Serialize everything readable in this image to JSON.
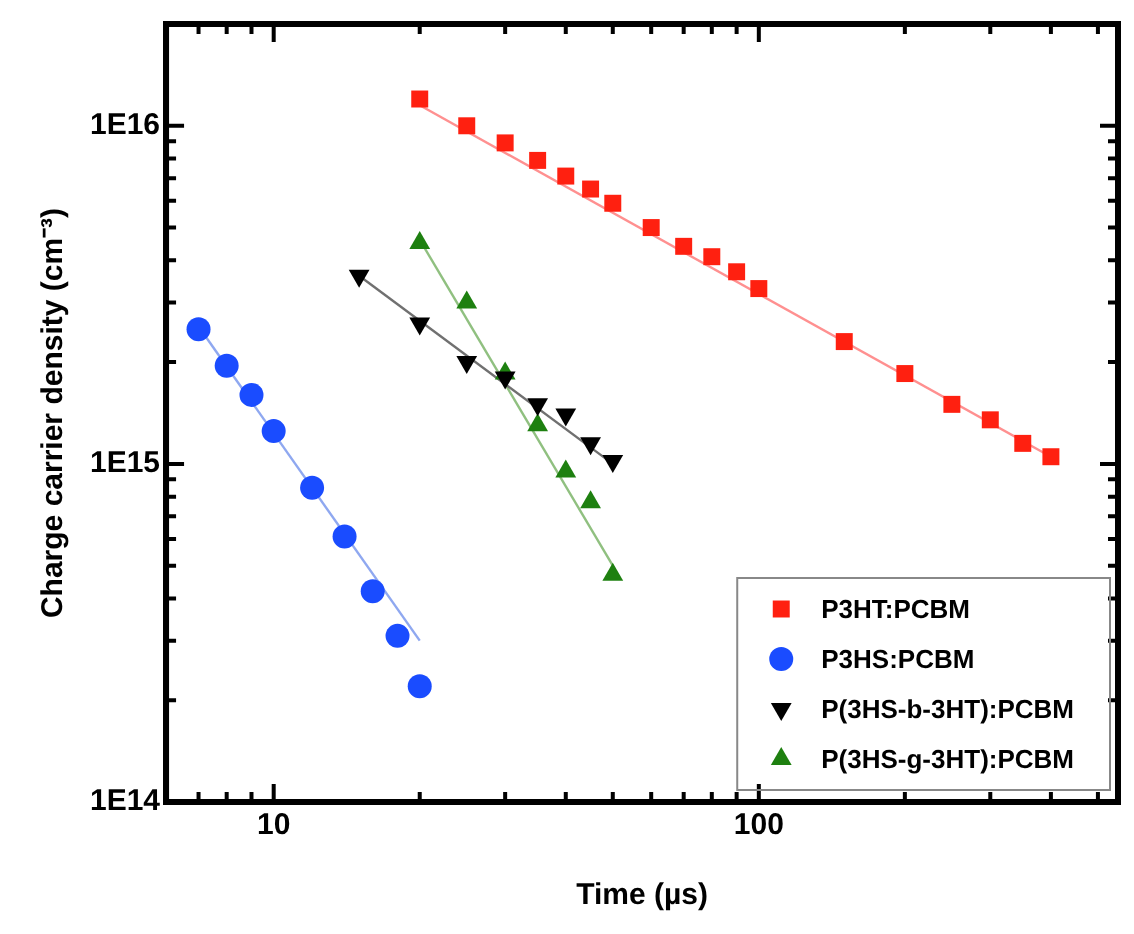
{
  "chart_data": {
    "type": "scatter",
    "xlabel": "Time (µs)",
    "ylabel": "Charge carrier density (cm⁻³)",
    "log": "xy",
    "grid": false,
    "legend": "bottom right",
    "xlim": [
      6,
      550
    ],
    "ylim": [
      100000000000000.0,
      2e+16
    ],
    "xticks": [
      {
        "value": 7,
        "label": null
      },
      {
        "value": 8,
        "label": null
      },
      {
        "value": 9,
        "label": null
      },
      {
        "value": 10,
        "label": "10"
      },
      {
        "value": 20,
        "label": null
      },
      {
        "value": 30,
        "label": null
      },
      {
        "value": 40,
        "label": null
      },
      {
        "value": 50,
        "label": null
      },
      {
        "value": 60,
        "label": null
      },
      {
        "value": 70,
        "label": null
      },
      {
        "value": 80,
        "label": null
      },
      {
        "value": 90,
        "label": null
      },
      {
        "value": 100,
        "label": "100"
      },
      {
        "value": 200,
        "label": null
      },
      {
        "value": 300,
        "label": null
      },
      {
        "value": 400,
        "label": null
      },
      {
        "value": 500,
        "label": null
      }
    ],
    "yticks": [
      {
        "value": 100000000000000.0,
        "label": "1E14"
      },
      {
        "value": 200000000000000.0,
        "label": null
      },
      {
        "value": 300000000000000.0,
        "label": null
      },
      {
        "value": 400000000000000.0,
        "label": null
      },
      {
        "value": 500000000000000.0,
        "label": null
      },
      {
        "value": 600000000000000.0,
        "label": null
      },
      {
        "value": 700000000000000.0,
        "label": null
      },
      {
        "value": 800000000000000.0,
        "label": null
      },
      {
        "value": 900000000000000.0,
        "label": null
      },
      {
        "value": 1000000000000000.0,
        "label": "1E15"
      },
      {
        "value": 2000000000000000.0,
        "label": null
      },
      {
        "value": 3000000000000000.0,
        "label": null
      },
      {
        "value": 4000000000000000.0,
        "label": null
      },
      {
        "value": 5000000000000000.0,
        "label": null
      },
      {
        "value": 6000000000000000.0,
        "label": null
      },
      {
        "value": 7000000000000000.0,
        "label": null
      },
      {
        "value": 8000000000000000.0,
        "label": null
      },
      {
        "value": 9000000000000000.0,
        "label": null
      },
      {
        "value": 1e+16,
        "label": "1E16"
      },
      {
        "value": 2e+16,
        "label": null
      }
    ],
    "series": [
      {
        "name": "P3HT:PCBM",
        "color": "#ff2010",
        "marker": "square",
        "x": [
          20,
          25,
          30,
          35,
          40,
          45,
          50,
          60,
          70,
          80,
          90,
          100,
          150,
          200,
          250,
          300,
          350,
          400
        ],
        "values": [
          1.2e+16,
          1e+16,
          8900000000000000.0,
          7900000000000000.0,
          7100000000000000.0,
          6500000000000000.0,
          5900000000000000.0,
          5000000000000000.0,
          4400000000000000.0,
          4100000000000000.0,
          3700000000000000.0,
          3300000000000000.0,
          2300000000000000.0,
          1850000000000000.0,
          1500000000000000.0,
          1350000000000000.0,
          1150000000000000.0,
          1050000000000000.0
        ]
      },
      {
        "name": "P3HS:PCBM",
        "color": "#1a4cff",
        "marker": "circle",
        "x": [
          7,
          8,
          9,
          10,
          12,
          14,
          16,
          18,
          20
        ],
        "values": [
          2500000000000000.0,
          1950000000000000.0,
          1600000000000000.0,
          1250000000000000.0,
          850000000000000.0,
          610000000000000.0,
          420000000000000.0,
          310000000000000.0,
          220000000000000.0
        ]
      },
      {
        "name": "P(3HS-b-3HT):PCBM",
        "color": "#000000",
        "marker": "triangle-down",
        "x": [
          15,
          20,
          25,
          30,
          35,
          40,
          45,
          50
        ],
        "values": [
          3600000000000000.0,
          2600000000000000.0,
          2000000000000000.0,
          1800000000000000.0,
          1500000000000000.0,
          1400000000000000.0,
          1150000000000000.0,
          1020000000000000.0
        ]
      },
      {
        "name": "P(3HS-g-3HT):PCBM",
        "color": "#1e8010",
        "marker": "triangle",
        "x": [
          20,
          25,
          30,
          35,
          40,
          45,
          50
        ],
        "values": [
          4500000000000000.0,
          3000000000000000.0,
          1850000000000000.0,
          1300000000000000.0,
          950000000000000.0,
          770000000000000.0,
          470000000000000.0
        ]
      },
      {
        "type": "line",
        "color": "#ff9090",
        "x": [
          20,
          400
        ],
        "values": [
          1.15e+16,
          1050000000000000.0
        ]
      },
      {
        "type": "line",
        "color": "#8fa8f0",
        "x": [
          7,
          20
        ],
        "values": [
          2550000000000000.0,
          300000000000000.0
        ]
      },
      {
        "type": "line",
        "color": "#707070",
        "x": [
          15,
          50
        ],
        "values": [
          3600000000000000.0,
          1000000000000000.0
        ]
      },
      {
        "type": "line",
        "color": "#90c080",
        "x": [
          20,
          50
        ],
        "values": [
          4600000000000000.0,
          500000000000000.0
        ]
      }
    ]
  }
}
